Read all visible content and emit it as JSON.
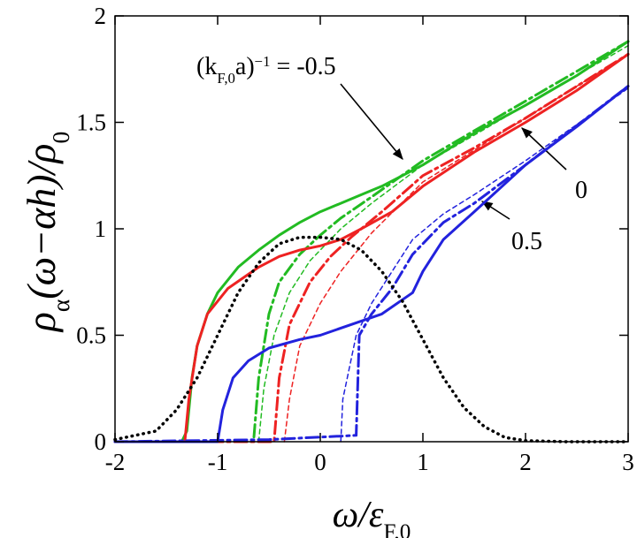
{
  "chart_data": {
    "type": "line",
    "x_label": [
      {
        "text": "ω/ε"
      },
      {
        "text": "F,0",
        "shift": "sub"
      }
    ],
    "y_label": [
      {
        "text": "ρ"
      },
      {
        "text": "α",
        "shift": "sub"
      },
      {
        "text": "(ω−αh)/ρ"
      },
      {
        "text": "0",
        "shift": "sub"
      }
    ],
    "xlim": [
      -2,
      3
    ],
    "xticks": [
      -2,
      -1,
      0,
      1,
      2,
      3
    ],
    "ylim": [
      0,
      2
    ],
    "yticks": [
      0,
      0.5,
      1,
      1.5,
      2
    ],
    "series": [
      {
        "color": "#22bb22",
        "style": "solid",
        "x": [
          -2,
          -1.35,
          -1.3,
          -1.25,
          -1.2,
          -1.1,
          -1.0,
          -0.8,
          -0.6,
          -0.4,
          -0.2,
          0,
          0.2,
          0.4,
          0.6,
          0.8,
          1.0,
          1.5,
          2,
          2.5,
          3
        ],
        "values": [
          0,
          0,
          0.05,
          0.3,
          0.45,
          0.6,
          0.7,
          0.82,
          0.9,
          0.97,
          1.03,
          1.08,
          1.12,
          1.16,
          1.2,
          1.25,
          1.3,
          1.45,
          1.58,
          1.72,
          1.88
        ]
      },
      {
        "color": "#22bb22",
        "style": "dashdot",
        "x": [
          -2,
          -0.65,
          -0.6,
          -0.5,
          -0.4,
          -0.2,
          0,
          0.2,
          0.5,
          1,
          1.5,
          2,
          2.5,
          3
        ],
        "values": [
          0,
          0,
          0.3,
          0.6,
          0.75,
          0.88,
          0.97,
          1.05,
          1.15,
          1.32,
          1.46,
          1.6,
          1.74,
          1.88
        ]
      },
      {
        "color": "#22bb22",
        "style": "dashed",
        "x": [
          -0.6,
          -0.55,
          -0.45,
          -0.3,
          -0.1,
          0.2,
          0.5,
          1,
          2,
          3
        ],
        "values": [
          0,
          0.25,
          0.5,
          0.7,
          0.85,
          1.0,
          1.12,
          1.3,
          1.58,
          1.86
        ]
      },
      {
        "color": "#ee2222",
        "style": "solid",
        "x": [
          -2,
          -1.32,
          -1.28,
          -1.2,
          -1.1,
          -0.9,
          -0.6,
          -0.4,
          -0.2,
          0,
          0.2,
          0.4,
          0.7,
          1.0,
          1.5,
          2,
          2.5,
          3
        ],
        "values": [
          0,
          0,
          0.2,
          0.45,
          0.6,
          0.72,
          0.82,
          0.87,
          0.9,
          0.92,
          0.95,
          1.0,
          1.08,
          1.2,
          1.36,
          1.5,
          1.65,
          1.82
        ]
      },
      {
        "color": "#ee2222",
        "style": "dashdot",
        "x": [
          -2,
          -0.45,
          -0.4,
          -0.3,
          -0.1,
          0.1,
          0.3,
          0.6,
          1.0,
          1.5,
          2,
          3
        ],
        "values": [
          0,
          0,
          0.3,
          0.55,
          0.75,
          0.87,
          0.96,
          1.08,
          1.25,
          1.38,
          1.52,
          1.82
        ]
      },
      {
        "color": "#ee2222",
        "style": "dashed",
        "x": [
          -0.35,
          -0.3,
          -0.2,
          0,
          0.2,
          0.5,
          1.0,
          2,
          3
        ],
        "values": [
          0,
          0.2,
          0.45,
          0.65,
          0.8,
          0.98,
          1.22,
          1.52,
          1.82
        ]
      },
      {
        "color": "#2222dd",
        "style": "solid",
        "x": [
          -2,
          -1.0,
          -0.95,
          -0.85,
          -0.7,
          -0.5,
          -0.2,
          0,
          0.3,
          0.6,
          0.9,
          1.0,
          1.2,
          1.5,
          2,
          2.5,
          3
        ],
        "values": [
          0,
          0,
          0.15,
          0.3,
          0.38,
          0.44,
          0.48,
          0.5,
          0.55,
          0.6,
          0.7,
          0.8,
          0.95,
          1.08,
          1.3,
          1.48,
          1.67
        ]
      },
      {
        "color": "#2222dd",
        "style": "dashdot",
        "x": [
          -2,
          -0.5,
          0.35,
          0.38,
          0.5,
          0.7,
          0.9,
          1.2,
          1.5,
          2,
          3
        ],
        "values": [
          0,
          0.01,
          0.03,
          0.5,
          0.6,
          0.72,
          0.88,
          1.03,
          1.12,
          1.3,
          1.67
        ]
      },
      {
        "color": "#2222dd",
        "style": "dashed",
        "x": [
          0.2,
          0.22,
          0.35,
          0.5,
          0.7,
          0.9,
          1.2,
          1.5,
          2,
          3
        ],
        "values": [
          0,
          0.2,
          0.5,
          0.65,
          0.8,
          0.95,
          1.07,
          1.16,
          1.32,
          1.66
        ]
      },
      {
        "color": "#000000",
        "style": "dotted",
        "x": [
          -2,
          -1.6,
          -1.4,
          -1.2,
          -1.0,
          -0.8,
          -0.6,
          -0.4,
          -0.2,
          0,
          0.2,
          0.4,
          0.6,
          0.8,
          1.0,
          1.2,
          1.4,
          1.6,
          1.8,
          2,
          2.4,
          3
        ],
        "values": [
          0.01,
          0.05,
          0.15,
          0.3,
          0.5,
          0.7,
          0.84,
          0.93,
          0.96,
          0.96,
          0.95,
          0.9,
          0.8,
          0.66,
          0.48,
          0.3,
          0.16,
          0.07,
          0.02,
          0.005,
          0,
          0
        ]
      }
    ],
    "annotations": [
      {
        "parts": [
          {
            "text": "(k"
          },
          {
            "text": "F,0",
            "shift": "sub"
          },
          {
            "text": "a)"
          },
          {
            "text": "−1",
            "shift": "sup"
          },
          {
            "text": " = -0.5"
          }
        ]
      },
      {
        "parts": [
          {
            "text": "0"
          }
        ]
      },
      {
        "parts": [
          {
            "text": "0.5"
          }
        ]
      }
    ]
  }
}
